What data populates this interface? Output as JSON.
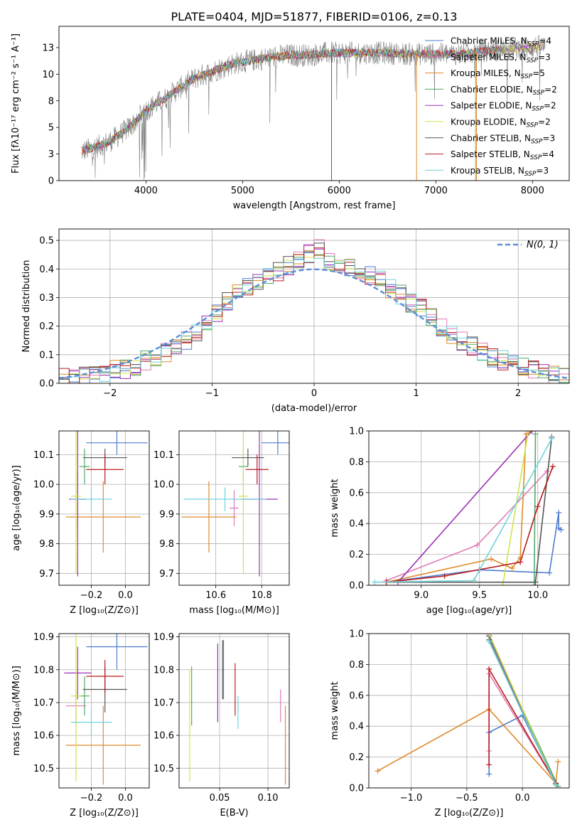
{
  "figure": {
    "title": "PLATE=0404, MJD=51877, FIBERID=0106, z=0.13"
  },
  "chart_data": [
    {
      "id": "spectrum",
      "type": "line",
      "title": "PLATE=0404, MJD=51877, FIBERID=0106, z=0.13",
      "xlabel": "wavelength [Angstrom, rest frame]",
      "ylabel": "Flux [fλ10⁻¹⁷ erg cm⁻² s⁻¹ A⁻¹]",
      "xlim": [
        3100,
        8380
      ],
      "ylim": [
        0,
        14.5
      ],
      "xticks": [
        4000,
        5000,
        6000,
        7000,
        8000
      ],
      "yticks": [
        0.0,
        2.5,
        5.0,
        7.5,
        10.0,
        12.5
      ],
      "grid": false,
      "legend_position": "top-right",
      "data_envelope": {
        "x": [
          3350,
          3500,
          3650,
          3800,
          3900,
          4000,
          4100,
          4200,
          4300,
          4400,
          4500,
          4700,
          4900,
          5100,
          5300,
          5500,
          5700,
          5900,
          6100,
          6300,
          6500,
          6700,
          6900,
          7100,
          7300,
          7500,
          7700,
          7900,
          8100
        ],
        "y": [
          2.8,
          3.2,
          3.8,
          4.8,
          5.6,
          6.6,
          7.2,
          7.7,
          8.4,
          9.0,
          9.6,
          10.3,
          11.0,
          11.3,
          11.6,
          11.8,
          11.8,
          12.0,
          12.0,
          12.0,
          12.0,
          11.9,
          11.9,
          11.9,
          11.9,
          12.2,
          12.3,
          12.5,
          12.6
        ]
      },
      "series": [
        {
          "name": "Chabrier MILES",
          "nssp": "4",
          "color": "#4f7dcf"
        },
        {
          "name": "Salpeter MILES",
          "nssp": "3",
          "color": "#e07ab5"
        },
        {
          "name": "Kroupa MILES",
          "nssp": "5",
          "color": "#e08a2c"
        },
        {
          "name": "Chabrier ELODIE",
          "nssp": "2",
          "color": "#55a86a"
        },
        {
          "name": "Salpeter ELODIE",
          "nssp": "2",
          "color": "#9b30b8"
        },
        {
          "name": "Kroupa ELODIE",
          "nssp": "2",
          "color": "#d2e34a"
        },
        {
          "name": "Chabrier STELIB",
          "nssp": "3",
          "color": "#555555"
        },
        {
          "name": "Salpeter STELIB",
          "nssp": "4",
          "color": "#b81c1c"
        },
        {
          "name": "Kroupa STELIB",
          "nssp": "3",
          "color": "#6fd3dc"
        }
      ]
    },
    {
      "id": "residuals",
      "type": "line",
      "xlabel": "(data-model)/error",
      "ylabel": "Normed distribution",
      "xlim": [
        -2.5,
        2.5
      ],
      "ylim": [
        0,
        0.54
      ],
      "xticks": [
        -2,
        -1,
        0,
        1,
        2
      ],
      "yticks": [
        0.0,
        0.1,
        0.2,
        0.3,
        0.4,
        0.5
      ],
      "grid": true,
      "legend_position": "top-right",
      "legend": [
        "N(0, 1)"
      ],
      "bin_edges": [
        -2.5,
        -2.4,
        -2.3,
        -2.2,
        -2.1,
        -2.0,
        -1.9,
        -1.8,
        -1.7,
        -1.6,
        -1.5,
        -1.4,
        -1.3,
        -1.2,
        -1.1,
        -1.0,
        -0.9,
        -0.8,
        -0.7,
        -0.6,
        -0.5,
        -0.4,
        -0.3,
        -0.2,
        -0.1,
        0.0,
        0.1,
        0.2,
        0.3,
        0.4,
        0.5,
        0.6,
        0.7,
        0.8,
        0.9,
        1.0,
        1.1,
        1.2,
        1.3,
        1.4,
        1.5,
        1.6,
        1.7,
        1.8,
        1.9,
        2.0,
        2.1,
        2.2,
        2.3,
        2.4,
        2.5
      ],
      "hist_base": [
        0.02,
        0.02,
        0.03,
        0.03,
        0.04,
        0.05,
        0.05,
        0.06,
        0.08,
        0.09,
        0.11,
        0.13,
        0.15,
        0.18,
        0.21,
        0.25,
        0.29,
        0.31,
        0.34,
        0.36,
        0.37,
        0.39,
        0.41,
        0.43,
        0.45,
        0.47,
        0.43,
        0.42,
        0.41,
        0.4,
        0.38,
        0.36,
        0.33,
        0.31,
        0.28,
        0.26,
        0.23,
        0.2,
        0.17,
        0.15,
        0.13,
        0.11,
        0.09,
        0.08,
        0.07,
        0.06,
        0.05,
        0.04,
        0.03,
        0.02
      ]
    },
    {
      "id": "age-vs-z",
      "type": "scatter",
      "xlabel": "Z [log₁₀(Z/Z⊙)]",
      "ylabel": "age  [log₁₀(age/yr)]",
      "xlim": [
        -0.39,
        0.14
      ],
      "ylim": [
        9.66,
        10.18
      ],
      "xticks": [
        -0.2,
        0.0
      ],
      "yticks": [
        9.7,
        9.8,
        9.9,
        10.0,
        10.1
      ],
      "grid": true,
      "points": [
        {
          "series": "Chabrier MILES",
          "x": -0.05,
          "y": 10.14,
          "xerr": 0.18,
          "yerr": 0.04
        },
        {
          "series": "Salpeter MILES",
          "x": -0.28,
          "y": 9.95,
          "xerr": 0.04,
          "yerr": 0.09
        },
        {
          "series": "Kroupa MILES",
          "x": -0.13,
          "y": 9.89,
          "xerr": 0.22,
          "yerr": 0.12
        },
        {
          "series": "Chabrier ELODIE",
          "x": -0.24,
          "y": 10.06,
          "xerr": 0.03,
          "yerr": 0.06
        },
        {
          "series": "Salpeter ELODIE",
          "x": -0.28,
          "y": 9.95,
          "xerr": 0.05,
          "yerr": 0.26
        },
        {
          "series": "Kroupa ELODIE",
          "x": -0.29,
          "y": 9.96,
          "xerr": 0.03,
          "yerr": 0.26
        },
        {
          "series": "Chabrier STELIB",
          "x": -0.12,
          "y": 10.09,
          "xerr": 0.13,
          "yerr": 0.03
        },
        {
          "series": "Salpeter STELIB",
          "x": -0.12,
          "y": 10.05,
          "xerr": 0.11,
          "yerr": 0.05
        },
        {
          "series": "Kroupa STELIB",
          "x": -0.2,
          "y": 9.95,
          "xerr": 0.12,
          "yerr": 0.04
        }
      ]
    },
    {
      "id": "age-vs-mass",
      "type": "scatter",
      "xlabel": "mass [log₁₀(M/M⊙)]",
      "ylabel": "",
      "xlim": [
        10.44,
        10.92
      ],
      "ylim": [
        9.66,
        10.18
      ],
      "xticks": [
        10.6,
        10.8
      ],
      "yticks": [
        9.7,
        9.8,
        9.9,
        10.0,
        10.1
      ],
      "grid": true,
      "points": [
        {
          "series": "Chabrier MILES",
          "x": 10.87,
          "y": 10.14,
          "xerr": 0.07,
          "yerr": 0.04
        },
        {
          "series": "Salpeter MILES",
          "x": 10.68,
          "y": 9.92,
          "xerr": 0.02,
          "yerr": 0.06
        },
        {
          "series": "Kroupa MILES",
          "x": 10.57,
          "y": 9.89,
          "xerr": 0.12,
          "yerr": 0.12
        },
        {
          "series": "Chabrier ELODIE",
          "x": 10.72,
          "y": 10.06,
          "xerr": 0.02,
          "yerr": 0.06
        },
        {
          "series": "Salpeter ELODIE",
          "x": 10.79,
          "y": 9.95,
          "xerr": 0.08,
          "yerr": 0.26
        },
        {
          "series": "Kroupa ELODIE",
          "x": 10.72,
          "y": 9.96,
          "xerr": 0.02,
          "yerr": 0.26
        },
        {
          "series": "Chabrier STELIB",
          "x": 10.74,
          "y": 10.09,
          "xerr": 0.07,
          "yerr": 0.03
        },
        {
          "series": "Salpeter STELIB",
          "x": 10.78,
          "y": 10.05,
          "xerr": 0.05,
          "yerr": 0.05
        },
        {
          "series": "Kroupa STELIB",
          "x": 10.64,
          "y": 9.95,
          "xerr": 0.18,
          "yerr": 0.04
        }
      ]
    },
    {
      "id": "weight-vs-age",
      "type": "line",
      "xlabel": "age  [log₁₀(age/yr)]",
      "ylabel": "mass weight",
      "xlim": [
        8.55,
        10.27
      ],
      "ylim": [
        0.0,
        1.0
      ],
      "xticks": [
        9.0,
        9.5,
        10.0
      ],
      "yticks": [
        0.0,
        0.2,
        0.4,
        0.6,
        0.8,
        1.0
      ],
      "grid": true,
      "series": [
        {
          "name": "Chabrier MILES",
          "x": [
            8.7,
            9.5,
            10.1,
            10.18,
            10.18,
            10.2
          ],
          "y": [
            0.02,
            0.1,
            0.08,
            0.47,
            0.37,
            0.36
          ]
        },
        {
          "name": "Salpeter MILES",
          "x": [
            8.7,
            9.48,
            10.08
          ],
          "y": [
            0.03,
            0.26,
            0.74
          ]
        },
        {
          "name": "Kroupa MILES",
          "x": [
            8.7,
            9.6,
            9.78,
            9.85,
            9.9,
            9.95
          ],
          "y": [
            0.02,
            0.17,
            0.11,
            0.18,
            0.98,
            1.0
          ]
        },
        {
          "name": "Chabrier ELODIE",
          "x": [
            9.97,
            9.98
          ],
          "y": [
            0.0,
            0.98
          ]
        },
        {
          "name": "Salpeter ELODIE",
          "x": [
            8.8,
            9.95
          ],
          "y": [
            0.02,
            1.0
          ]
        },
        {
          "name": "Kroupa ELODIE",
          "x": [
            9.7,
            9.92
          ],
          "y": [
            0.0,
            1.0
          ]
        },
        {
          "name": "Chabrier STELIB",
          "x": [
            8.7,
            9.98,
            10.12
          ],
          "y": [
            0.02,
            0.02,
            0.96
          ]
        },
        {
          "name": "Salpeter STELIB",
          "x": [
            8.7,
            9.2,
            9.85,
            10.0,
            10.13
          ],
          "y": [
            0.02,
            0.06,
            0.15,
            0.51,
            0.77
          ]
        },
        {
          "name": "Kroupa STELIB",
          "x": [
            8.6,
            9.45,
            10.12
          ],
          "y": [
            0.02,
            0.03,
            0.95
          ]
        }
      ]
    },
    {
      "id": "mass-vs-z",
      "type": "scatter",
      "xlabel": "Z [log₁₀(Z/Z⊙)]",
      "ylabel": "mass [log₁₀(M/M⊙)]",
      "xlim": [
        -0.39,
        0.14
      ],
      "ylim": [
        10.44,
        10.91
      ],
      "xticks": [
        -0.2,
        0.0
      ],
      "yticks": [
        10.5,
        10.6,
        10.7,
        10.8,
        10.9
      ],
      "grid": true,
      "points": [
        {
          "series": "Chabrier MILES",
          "x": -0.05,
          "y": 10.87,
          "xerr": 0.18,
          "yerr": 0.07
        },
        {
          "series": "Salpeter MILES",
          "x": -0.29,
          "y": 10.69,
          "xerr": 0.06,
          "yerr": 0.05
        },
        {
          "series": "Kroupa MILES",
          "x": -0.13,
          "y": 10.57,
          "xerr": 0.22,
          "yerr": 0.12
        },
        {
          "series": "Chabrier ELODIE",
          "x": -0.24,
          "y": 10.72,
          "xerr": 0.03,
          "yerr": 0.06
        },
        {
          "series": "Salpeter ELODIE",
          "x": -0.28,
          "y": 10.79,
          "xerr": 0.08,
          "yerr": 0.08
        },
        {
          "series": "Kroupa ELODIE",
          "x": -0.29,
          "y": 10.72,
          "xerr": 0.03,
          "yerr": 0.26
        },
        {
          "series": "Chabrier STELIB",
          "x": -0.12,
          "y": 10.74,
          "xerr": 0.13,
          "yerr": 0.07
        },
        {
          "series": "Salpeter STELIB",
          "x": -0.12,
          "y": 10.78,
          "xerr": 0.11,
          "yerr": 0.05
        },
        {
          "series": "Kroupa STELIB",
          "x": -0.2,
          "y": 10.64,
          "xerr": 0.12,
          "yerr": 0.04
        }
      ]
    },
    {
      "id": "mass-vs-ebv",
      "type": "scatter",
      "xlabel": "E(B-V)",
      "ylabel": "",
      "xlim": [
        0.008,
        0.122
      ],
      "ylim": [
        10.44,
        10.91
      ],
      "xticks": [
        0.05,
        0.1
      ],
      "yticks": [
        10.5,
        10.6,
        10.7,
        10.8,
        10.9
      ],
      "grid": true,
      "points": [
        {
          "series": "Chabrier MILES",
          "x": 0.054,
          "y": 10.8,
          "yerr": 0.09
        },
        {
          "series": "Salpeter MILES",
          "x": 0.113,
          "y": 10.69,
          "yerr": 0.05
        },
        {
          "series": "Kroupa MILES",
          "x": 0.118,
          "y": 10.57,
          "yerr": 0.12
        },
        {
          "series": "Chabrier ELODIE",
          "x": 0.021,
          "y": 10.72,
          "yerr": 0.09
        },
        {
          "series": "Salpeter ELODIE",
          "x": 0.048,
          "y": 10.76,
          "yerr": 0.12
        },
        {
          "series": "Kroupa ELODIE",
          "x": 0.019,
          "y": 10.63,
          "yerr": 0.17
        },
        {
          "series": "Chabrier STELIB",
          "x": 0.053,
          "y": 10.8,
          "yerr": 0.09
        },
        {
          "series": "Salpeter STELIB",
          "x": 0.066,
          "y": 10.74,
          "yerr": 0.08
        },
        {
          "series": "Kroupa STELIB",
          "x": 0.069,
          "y": 10.67,
          "yerr": 0.05
        }
      ]
    },
    {
      "id": "weight-vs-z",
      "type": "line",
      "xlabel": "Z [log₁₀(Z/Z⊙)]",
      "ylabel": "mass weight",
      "xlim": [
        -1.38,
        0.42
      ],
      "ylim": [
        0.0,
        1.0
      ],
      "xticks": [
        -1.0,
        -0.5,
        0.0
      ],
      "yticks": [
        0.0,
        0.2,
        0.4,
        0.6,
        0.8,
        1.0
      ],
      "grid": true,
      "series": [
        {
          "name": "Chabrier MILES",
          "x": [
            -0.3,
            -0.3,
            0.0,
            0.3
          ],
          "y": [
            0.09,
            0.36,
            0.47,
            0.03
          ]
        },
        {
          "name": "Salpeter MILES",
          "x": [
            -0.3,
            -0.3,
            0.3
          ],
          "y": [
            0.24,
            0.74,
            0.03
          ]
        },
        {
          "name": "Kroupa MILES",
          "x": [
            -1.3,
            -0.3,
            0.3,
            0.32
          ],
          "y": [
            0.11,
            0.51,
            0.03,
            0.17
          ]
        },
        {
          "name": "Chabrier ELODIE",
          "x": [
            -0.3,
            0.32
          ],
          "y": [
            0.98,
            0.01
          ]
        },
        {
          "name": "Salpeter ELODIE",
          "x": [
            -0.3,
            0.3
          ],
          "y": [
            0.99,
            0.02
          ]
        },
        {
          "name": "Kroupa ELODIE",
          "x": [
            -0.3,
            0.3
          ],
          "y": [
            1.0,
            0.02
          ]
        },
        {
          "name": "Chabrier STELIB",
          "x": [
            -0.3,
            0.3
          ],
          "y": [
            0.96,
            0.02
          ]
        },
        {
          "name": "Salpeter STELIB",
          "x": [
            -0.3,
            -0.3,
            0.3
          ],
          "y": [
            0.15,
            0.77,
            0.03
          ]
        },
        {
          "name": "Kroupa STELIB",
          "x": [
            -0.3,
            0.3
          ],
          "y": [
            0.95,
            0.02
          ]
        }
      ]
    }
  ]
}
